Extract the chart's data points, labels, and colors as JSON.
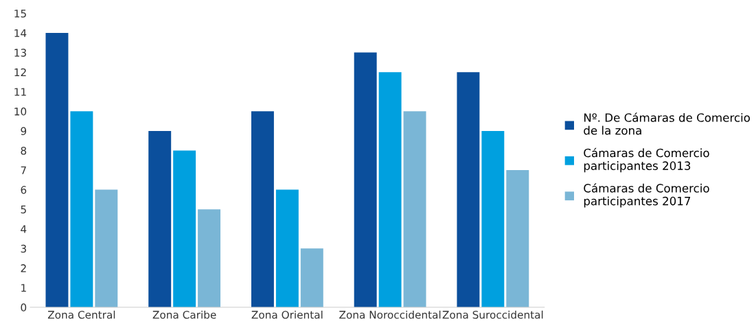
{
  "chart_data": {
    "type": "bar",
    "categories": [
      "Zona Central",
      "Zona Caribe",
      "Zona Oriental",
      "Zona Noroccidental",
      "Zona Suroccidental"
    ],
    "series": [
      {
        "name": "Nº. De Cámaras de Comercio\nde la zona",
        "color": "#0b4f9c",
        "values": [
          14,
          9,
          10,
          13,
          12
        ]
      },
      {
        "name": "Cámaras de Comercio\nparticipantes 2013",
        "color": "#00a0df",
        "values": [
          10,
          8,
          6,
          12,
          9
        ]
      },
      {
        "name": "Cámaras de Comercio\nparticipantes 2017",
        "color": "#7ab6d6",
        "values": [
          6,
          5,
          3,
          10,
          7
        ]
      }
    ],
    "ylim": [
      0,
      15
    ],
    "yticks": [
      0,
      1,
      2,
      3,
      4,
      5,
      6,
      7,
      8,
      9,
      10,
      11,
      12,
      13,
      14,
      15
    ],
    "legend": "right",
    "grid": false
  }
}
